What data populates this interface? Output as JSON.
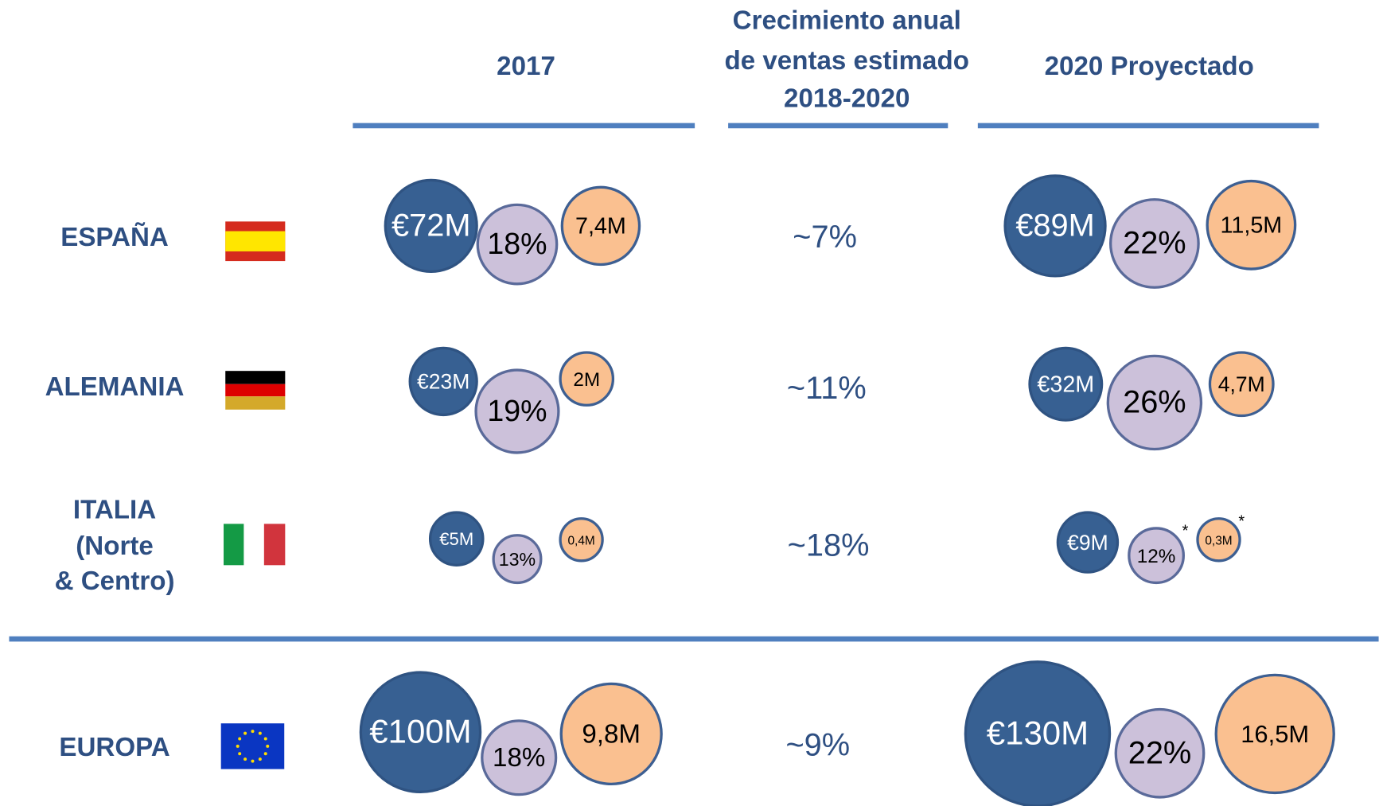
{
  "header": {
    "col_2017": "2017",
    "col_growth": [
      "Crecimiento anual",
      "de ventas estimado",
      "2018-2020"
    ],
    "col_2020": "2020 Proyectado"
  },
  "rows": [
    {
      "label": [
        "ESPAÑA"
      ],
      "growth": "~7%",
      "y2017": [
        "€72M",
        "18%",
        "7,4M"
      ],
      "y2020": [
        "€89M",
        "22%",
        "11,5M"
      ]
    },
    {
      "label": [
        "ALEMANIA"
      ],
      "growth": "~11%",
      "y2017": [
        "€23M",
        "19%",
        "2M"
      ],
      "y2020": [
        "€32M",
        "26%",
        "4,7M"
      ]
    },
    {
      "label": [
        "ITALIA",
        "(Norte",
        "& Centro)"
      ],
      "growth": "~18%",
      "y2017": [
        "€5M",
        "13%",
        "0,4M"
      ],
      "y2020": [
        "€9M",
        "12%",
        "0,3M"
      ],
      "notes2020": [
        "*",
        "*"
      ]
    },
    {
      "label": [
        "EUROPA"
      ],
      "growth": "~9%",
      "y2017": [
        "€100M",
        "18%",
        "9,8M"
      ],
      "y2020": [
        "€130M",
        "22%",
        "16,5M"
      ]
    }
  ]
}
